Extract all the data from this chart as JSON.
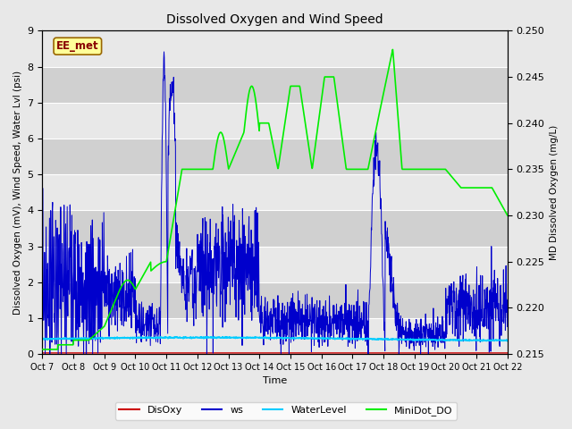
{
  "title": "Dissolved Oxygen and Wind Speed",
  "xlabel": "Time",
  "ylabel_left": "Dissolved Oxygen (mV), Wind Speed, Water Lvl (psi)",
  "ylabel_right": "MD Dissolved Oxygen (mg/L)",
  "ylim_left": [
    0.0,
    9.0
  ],
  "ylim_right": [
    0.215,
    0.25
  ],
  "yticks_left": [
    0.0,
    1.0,
    2.0,
    3.0,
    4.0,
    5.0,
    6.0,
    7.0,
    8.0,
    9.0
  ],
  "yticks_right": [
    0.215,
    0.22,
    0.225,
    0.23,
    0.235,
    0.24,
    0.245,
    0.25
  ],
  "xtick_labels": [
    "Oct 7",
    "Oct 8",
    "Oct 9",
    "Oct 10",
    "Oct 11",
    "Oct 12",
    "Oct 13",
    "Oct 14",
    "Oct 15",
    "Oct 16",
    "Oct 17",
    "Oct 18",
    "Oct 19",
    "Oct 20",
    "Oct 21",
    "Oct 22"
  ],
  "station_label": "EE_met",
  "background_color": "#e8e8e8",
  "plot_bg_color": "#dcdcdc",
  "band_color_light": "#e8e8e8",
  "band_color_dark": "#d0d0d0",
  "grid_color": "#ffffff",
  "disoxy_color": "#cc0000",
  "ws_color": "#0000cc",
  "waterlevel_color": "#00ccff",
  "minidot_color": "#00ee00",
  "legend_labels": [
    "DisOxy",
    "ws",
    "WaterLevel",
    "MiniDot_DO"
  ]
}
